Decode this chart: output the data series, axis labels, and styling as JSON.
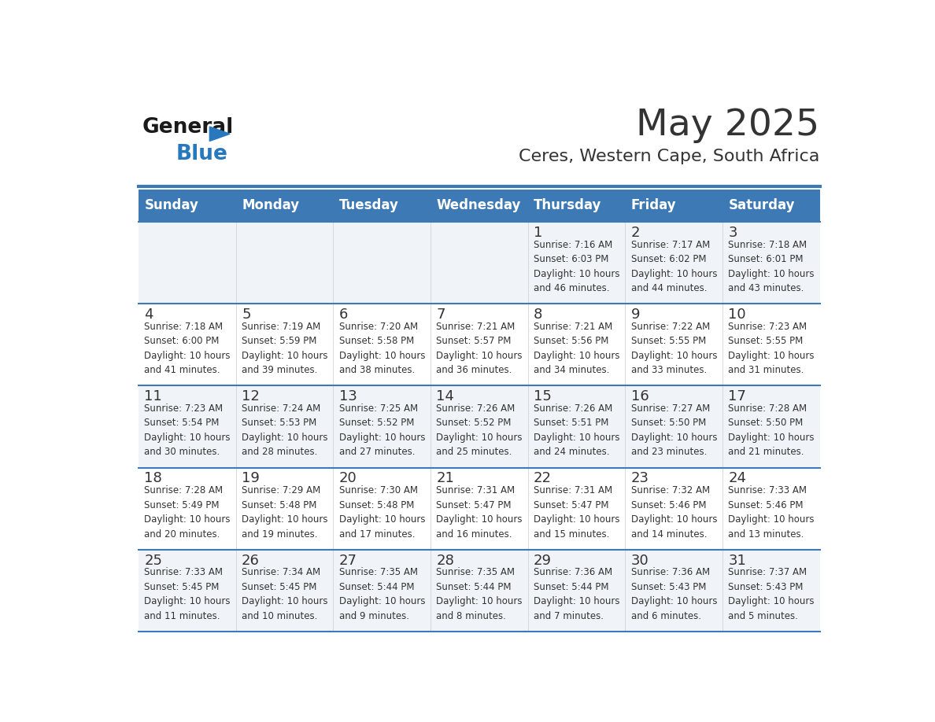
{
  "title": "May 2025",
  "subtitle": "Ceres, Western Cape, South Africa",
  "days_of_week": [
    "Sunday",
    "Monday",
    "Tuesday",
    "Wednesday",
    "Thursday",
    "Friday",
    "Saturday"
  ],
  "header_bg": "#3d7ab5",
  "header_text": "#ffffff",
  "cell_bg_light": "#f0f4f8",
  "cell_bg_white": "#ffffff",
  "separator_color": "#3d7ab5",
  "day_number_color": "#333333",
  "cell_text_color": "#333333",
  "logo_general_color": "#1a1a1a",
  "logo_blue_color": "#2878be",
  "weeks": [
    [
      {
        "day": null,
        "info": ""
      },
      {
        "day": null,
        "info": ""
      },
      {
        "day": null,
        "info": ""
      },
      {
        "day": null,
        "info": ""
      },
      {
        "day": 1,
        "info": "Sunrise: 7:16 AM\nSunset: 6:03 PM\nDaylight: 10 hours\nand 46 minutes."
      },
      {
        "day": 2,
        "info": "Sunrise: 7:17 AM\nSunset: 6:02 PM\nDaylight: 10 hours\nand 44 minutes."
      },
      {
        "day": 3,
        "info": "Sunrise: 7:18 AM\nSunset: 6:01 PM\nDaylight: 10 hours\nand 43 minutes."
      }
    ],
    [
      {
        "day": 4,
        "info": "Sunrise: 7:18 AM\nSunset: 6:00 PM\nDaylight: 10 hours\nand 41 minutes."
      },
      {
        "day": 5,
        "info": "Sunrise: 7:19 AM\nSunset: 5:59 PM\nDaylight: 10 hours\nand 39 minutes."
      },
      {
        "day": 6,
        "info": "Sunrise: 7:20 AM\nSunset: 5:58 PM\nDaylight: 10 hours\nand 38 minutes."
      },
      {
        "day": 7,
        "info": "Sunrise: 7:21 AM\nSunset: 5:57 PM\nDaylight: 10 hours\nand 36 minutes."
      },
      {
        "day": 8,
        "info": "Sunrise: 7:21 AM\nSunset: 5:56 PM\nDaylight: 10 hours\nand 34 minutes."
      },
      {
        "day": 9,
        "info": "Sunrise: 7:22 AM\nSunset: 5:55 PM\nDaylight: 10 hours\nand 33 minutes."
      },
      {
        "day": 10,
        "info": "Sunrise: 7:23 AM\nSunset: 5:55 PM\nDaylight: 10 hours\nand 31 minutes."
      }
    ],
    [
      {
        "day": 11,
        "info": "Sunrise: 7:23 AM\nSunset: 5:54 PM\nDaylight: 10 hours\nand 30 minutes."
      },
      {
        "day": 12,
        "info": "Sunrise: 7:24 AM\nSunset: 5:53 PM\nDaylight: 10 hours\nand 28 minutes."
      },
      {
        "day": 13,
        "info": "Sunrise: 7:25 AM\nSunset: 5:52 PM\nDaylight: 10 hours\nand 27 minutes."
      },
      {
        "day": 14,
        "info": "Sunrise: 7:26 AM\nSunset: 5:52 PM\nDaylight: 10 hours\nand 25 minutes."
      },
      {
        "day": 15,
        "info": "Sunrise: 7:26 AM\nSunset: 5:51 PM\nDaylight: 10 hours\nand 24 minutes."
      },
      {
        "day": 16,
        "info": "Sunrise: 7:27 AM\nSunset: 5:50 PM\nDaylight: 10 hours\nand 23 minutes."
      },
      {
        "day": 17,
        "info": "Sunrise: 7:28 AM\nSunset: 5:50 PM\nDaylight: 10 hours\nand 21 minutes."
      }
    ],
    [
      {
        "day": 18,
        "info": "Sunrise: 7:28 AM\nSunset: 5:49 PM\nDaylight: 10 hours\nand 20 minutes."
      },
      {
        "day": 19,
        "info": "Sunrise: 7:29 AM\nSunset: 5:48 PM\nDaylight: 10 hours\nand 19 minutes."
      },
      {
        "day": 20,
        "info": "Sunrise: 7:30 AM\nSunset: 5:48 PM\nDaylight: 10 hours\nand 17 minutes."
      },
      {
        "day": 21,
        "info": "Sunrise: 7:31 AM\nSunset: 5:47 PM\nDaylight: 10 hours\nand 16 minutes."
      },
      {
        "day": 22,
        "info": "Sunrise: 7:31 AM\nSunset: 5:47 PM\nDaylight: 10 hours\nand 15 minutes."
      },
      {
        "day": 23,
        "info": "Sunrise: 7:32 AM\nSunset: 5:46 PM\nDaylight: 10 hours\nand 14 minutes."
      },
      {
        "day": 24,
        "info": "Sunrise: 7:33 AM\nSunset: 5:46 PM\nDaylight: 10 hours\nand 13 minutes."
      }
    ],
    [
      {
        "day": 25,
        "info": "Sunrise: 7:33 AM\nSunset: 5:45 PM\nDaylight: 10 hours\nand 11 minutes."
      },
      {
        "day": 26,
        "info": "Sunrise: 7:34 AM\nSunset: 5:45 PM\nDaylight: 10 hours\nand 10 minutes."
      },
      {
        "day": 27,
        "info": "Sunrise: 7:35 AM\nSunset: 5:44 PM\nDaylight: 10 hours\nand 9 minutes."
      },
      {
        "day": 28,
        "info": "Sunrise: 7:35 AM\nSunset: 5:44 PM\nDaylight: 10 hours\nand 8 minutes."
      },
      {
        "day": 29,
        "info": "Sunrise: 7:36 AM\nSunset: 5:44 PM\nDaylight: 10 hours\nand 7 minutes."
      },
      {
        "day": 30,
        "info": "Sunrise: 7:36 AM\nSunset: 5:43 PM\nDaylight: 10 hours\nand 6 minutes."
      },
      {
        "day": 31,
        "info": "Sunrise: 7:37 AM\nSunset: 5:43 PM\nDaylight: 10 hours\nand 5 minutes."
      }
    ]
  ]
}
